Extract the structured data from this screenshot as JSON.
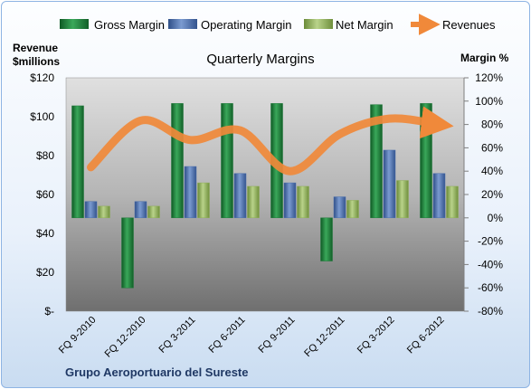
{
  "chart_data": {
    "type": "bar",
    "title": "Quarterly Margins",
    "left_axis_title": [
      "Revenue",
      "$millions"
    ],
    "right_axis_title": "Margin %",
    "company": "Grupo Aeroportuario del Sureste",
    "categories": [
      "FQ 9-2010",
      "FQ 12-2010",
      "FQ 3-2011",
      "FQ 6-2011",
      "FQ 9-2011",
      "FQ 12-2011",
      "FQ 3-2012",
      "FQ 6-2012"
    ],
    "left_ticks": [
      "$-",
      "$20",
      "$40",
      "$60",
      "$80",
      "$100",
      "$120"
    ],
    "right_ticks": [
      "-80%",
      "-60%",
      "-40%",
      "-20%",
      "0%",
      "20%",
      "40%",
      "60%",
      "80%",
      "100%",
      "120%"
    ],
    "left_ylim": [
      0,
      120
    ],
    "right_ylim": [
      -80,
      120
    ],
    "series": [
      {
        "name": "Gross Margin",
        "axis": "right",
        "color": "#1e7a3a",
        "values": [
          96,
          -60,
          98,
          98,
          98,
          -37,
          97,
          98
        ]
      },
      {
        "name": "Operating Margin",
        "axis": "right",
        "color": "#4a6fae",
        "values": [
          14,
          14,
          44,
          38,
          30,
          18,
          58,
          38
        ]
      },
      {
        "name": "Net Margin",
        "axis": "right",
        "color": "#8fae58",
        "values": [
          10,
          10,
          30,
          27,
          27,
          15,
          32,
          27
        ]
      }
    ],
    "line_series": {
      "name": "Revenues",
      "axis": "left",
      "color": "#f0893a",
      "values": [
        74,
        98,
        88,
        93,
        72,
        91,
        99,
        96
      ]
    },
    "legend_position": "top",
    "grid": false
  }
}
